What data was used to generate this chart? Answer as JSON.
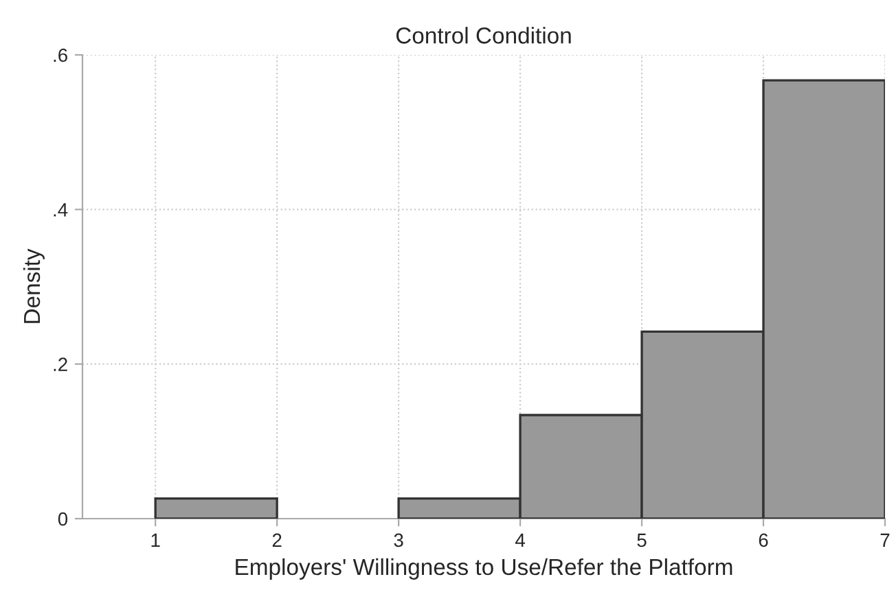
{
  "chart_data": {
    "type": "histogram",
    "title": "Control Condition",
    "xlabel": "Employers' Willingness to Use/Refer the Platform",
    "ylabel": "Density",
    "bins": [
      1,
      2,
      3,
      4,
      5,
      6,
      7
    ],
    "values": [
      0.026,
      0,
      0.026,
      0.134,
      0.242,
      0.567
    ],
    "color": "#999999",
    "xlim": [
      0.4,
      7
    ],
    "xticks": [
      1,
      2,
      3,
      4,
      5,
      6,
      7
    ],
    "ylim": [
      0,
      0.6
    ],
    "yticks": [
      {
        "value": 0,
        "label": "0"
      },
      {
        "value": 0.2,
        "label": ".2"
      },
      {
        "value": 0.4,
        "label": ".4"
      },
      {
        "value": 0.6,
        "label": ".6"
      }
    ],
    "grid": true
  }
}
